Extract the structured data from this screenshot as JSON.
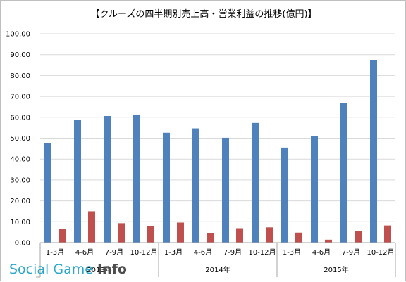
{
  "watermark": {
    "part1": "Social Game ",
    "part2": "Info"
  },
  "chart_data": {
    "type": "bar",
    "title": "【クルーズの四半期別売上高・営業利益の推移(億円)】",
    "xlabel": "",
    "ylabel": "",
    "ylim": [
      0,
      100
    ],
    "y_ticks": [
      "0.00",
      "10.00",
      "20.00",
      "30.00",
      "40.00",
      "50.00",
      "60.00",
      "70.00",
      "80.00",
      "90.00",
      "100.00"
    ],
    "grid": true,
    "legend": "none",
    "categories": [
      "1-3月",
      "4-6月",
      "7-9月",
      "10-12月",
      "1-3月",
      "4-6月",
      "7-9月",
      "10-12月",
      "1-3月",
      "4-6月",
      "7-9月",
      "10-12月"
    ],
    "groups": [
      {
        "label": "2013年",
        "start": 0,
        "count": 4
      },
      {
        "label": "2014年",
        "start": 4,
        "count": 4
      },
      {
        "label": "2015年",
        "start": 8,
        "count": 4
      }
    ],
    "series": [
      {
        "values": [
          47.5,
          58.7,
          60.6,
          61.3,
          52.6,
          54.7,
          50.2,
          57.3,
          45.5,
          50.9,
          67.0,
          87.5
        ],
        "color": "#4f81bd"
      },
      {
        "values": [
          6.6,
          15.0,
          9.3,
          8.0,
          9.6,
          4.5,
          6.9,
          7.3,
          4.8,
          1.4,
          5.5,
          8.2
        ],
        "color": "#c0504d"
      }
    ]
  }
}
